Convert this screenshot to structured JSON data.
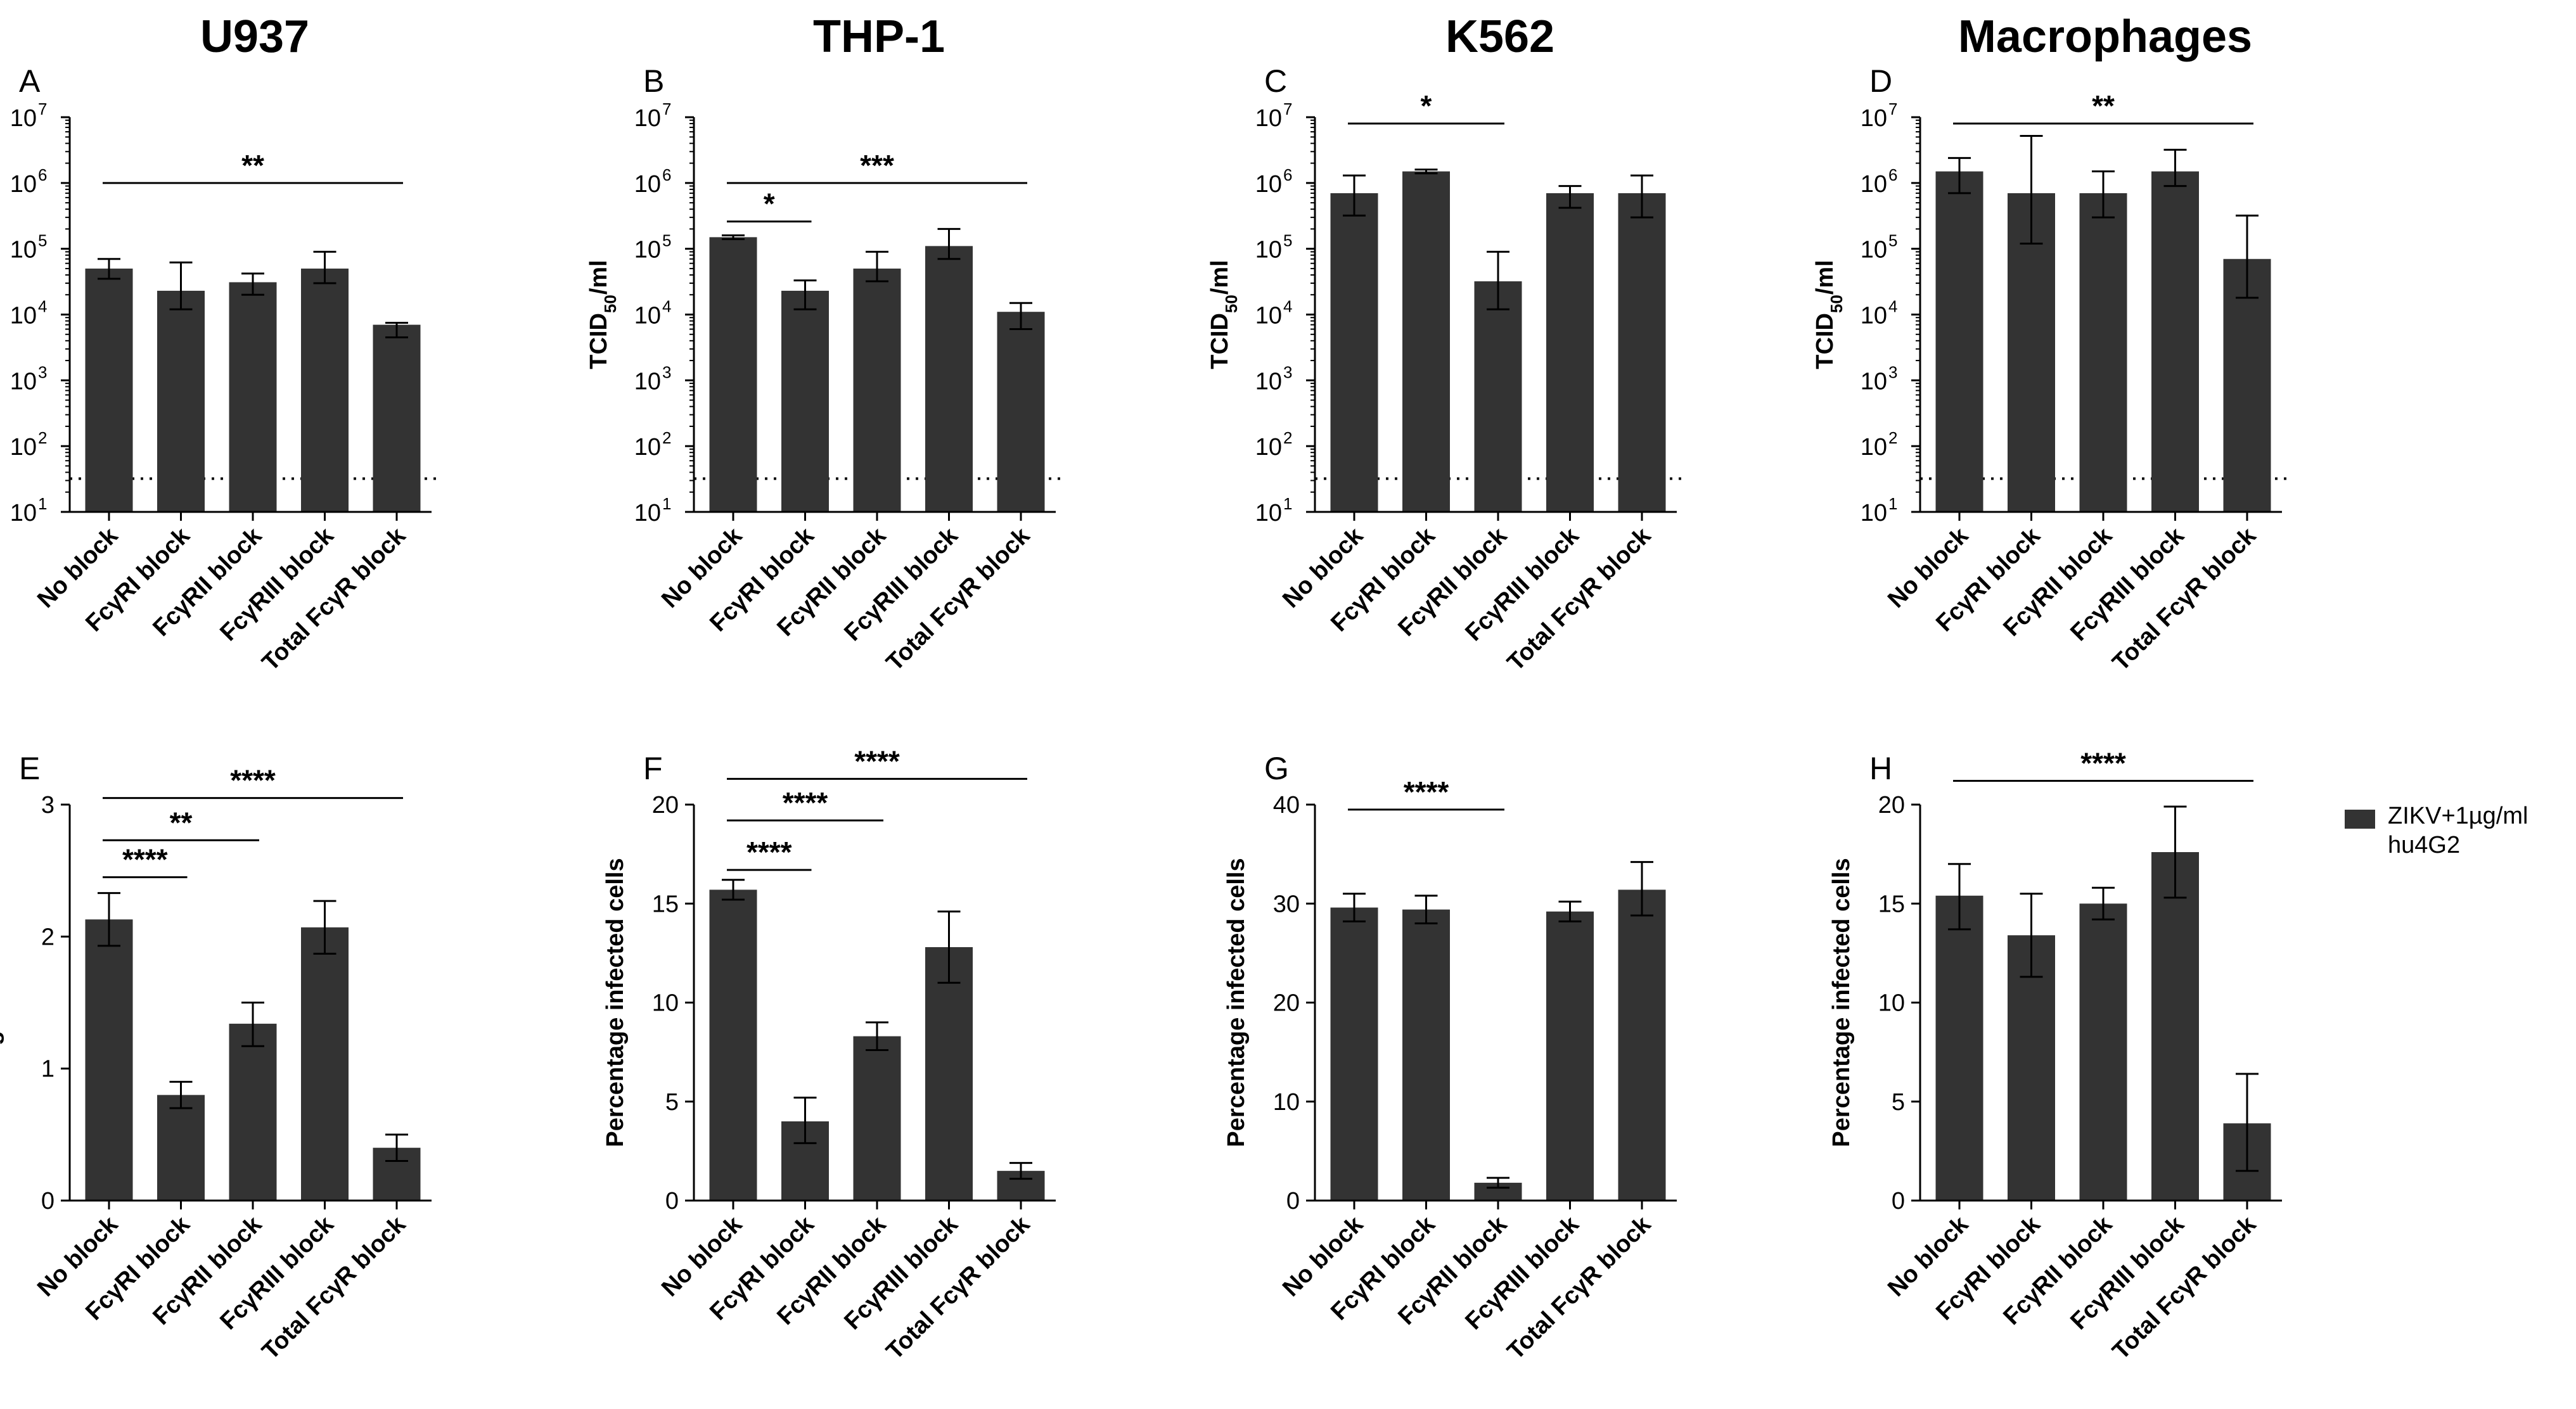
{
  "colors": {
    "bar": "#333333",
    "axis": "#000000",
    "line": "#000000"
  },
  "chart_data": [
    {
      "panel": "A",
      "title": "U937",
      "type": "bar",
      "scale": "log",
      "categories": [
        "No block",
        "FcγRI block",
        "FcγRII block",
        "FcγRIII block",
        "Total FcγR block"
      ],
      "values": [
        50000,
        23000,
        31000,
        50000,
        7000
      ],
      "error_low": [
        35000,
        12000,
        20000,
        30000,
        4500
      ],
      "error_high": [
        70000,
        62000,
        42000,
        90000,
        7500
      ],
      "ylabel": "TCID50/ml",
      "ylim": [
        10,
        10000000
      ],
      "detection_limit": 32,
      "significance": [
        {
          "from": 0,
          "to": 4,
          "label": "**",
          "level": 1000000
        }
      ]
    },
    {
      "panel": "B",
      "title": "THP-1",
      "type": "bar",
      "scale": "log",
      "categories": [
        "No block",
        "FcγRI block",
        "FcγRII block",
        "FcγRIII block",
        "Total FcγR block"
      ],
      "values": [
        150000,
        23000,
        50000,
        110000,
        11000
      ],
      "error_low": [
        140000,
        12000,
        32000,
        70000,
        6000
      ],
      "error_high": [
        160000,
        33000,
        90000,
        200000,
        15000
      ],
      "ylabel": "TCID50/ml",
      "ylim": [
        10,
        10000000
      ],
      "detection_limit": 32,
      "significance": [
        {
          "from": 0,
          "to": 1,
          "label": "*",
          "level": 260000
        },
        {
          "from": 0,
          "to": 4,
          "label": "***",
          "level": 1000000
        }
      ]
    },
    {
      "panel": "C",
      "title": "K562",
      "type": "bar",
      "scale": "log",
      "categories": [
        "No block",
        "FcγRI block",
        "FcγRII block",
        "FcγRIII block",
        "Total FcγR block"
      ],
      "values": [
        700000,
        1500000,
        32000,
        700000,
        700000
      ],
      "error_low": [
        320000,
        1400000,
        12000,
        420000,
        300000
      ],
      "error_high": [
        1300000,
        1600000,
        90000,
        900000,
        1300000
      ],
      "ylabel": "TCID50/ml",
      "ylim": [
        10,
        10000000
      ],
      "detection_limit": 32,
      "significance": [
        {
          "from": 0,
          "to": 2,
          "label": "*",
          "level": 8000000
        }
      ]
    },
    {
      "panel": "D",
      "title": "Macrophages",
      "type": "bar",
      "scale": "log",
      "categories": [
        "No block",
        "FcγRI block",
        "FcγRII block",
        "FcγRIII block",
        "Total FcγR block"
      ],
      "values": [
        1500000,
        700000,
        700000,
        1500000,
        70000
      ],
      "error_low": [
        700000,
        120000,
        300000,
        900000,
        18000
      ],
      "error_high": [
        2400000,
        5200000,
        1500000,
        3200000,
        320000
      ],
      "ylabel": "TCID50/ml",
      "ylim": [
        10,
        10000000
      ],
      "detection_limit": 32,
      "significance": [
        {
          "from": 0,
          "to": 4,
          "label": "**",
          "level": 8000000
        }
      ]
    },
    {
      "panel": "E",
      "title": "",
      "type": "bar",
      "scale": "linear",
      "categories": [
        "No block",
        "FcγRI block",
        "FcγRII block",
        "FcγRIII block",
        "Total FcγR block"
      ],
      "values": [
        2.13,
        0.8,
        1.34,
        2.07,
        0.4
      ],
      "error_low": [
        1.93,
        0.7,
        1.17,
        1.87,
        0.3
      ],
      "error_high": [
        2.33,
        0.9,
        1.5,
        2.27,
        0.5
      ],
      "ylabel": "Percentage infected cells",
      "ylim": [
        0,
        3
      ],
      "yticks": [
        0,
        1,
        2,
        3
      ],
      "significance": [
        {
          "from": 0,
          "to": 1,
          "label": "****",
          "level": 2.45
        },
        {
          "from": 0,
          "to": 2,
          "label": "**",
          "level": 2.73
        },
        {
          "from": 0,
          "to": 4,
          "label": "****",
          "level": 3.05
        }
      ]
    },
    {
      "panel": "F",
      "title": "",
      "type": "bar",
      "scale": "linear",
      "categories": [
        "No block",
        "FcγRI block",
        "FcγRII block",
        "FcγRIII block",
        "Total FcγR block"
      ],
      "values": [
        15.7,
        4.0,
        8.3,
        12.8,
        1.5
      ],
      "error_low": [
        15.2,
        2.9,
        7.6,
        11.0,
        1.1
      ],
      "error_high": [
        16.2,
        5.2,
        9.0,
        14.6,
        1.9
      ],
      "ylabel": "Percentage infected cells",
      "ylim": [
        0,
        20
      ],
      "yticks": [
        0,
        5,
        10,
        15,
        20
      ],
      "significance": [
        {
          "from": 0,
          "to": 1,
          "label": "****",
          "level": 16.7
        },
        {
          "from": 0,
          "to": 2,
          "label": "****",
          "level": 19.2
        },
        {
          "from": 0,
          "to": 4,
          "label": "****",
          "level": 21.3
        }
      ]
    },
    {
      "panel": "G",
      "title": "",
      "type": "bar",
      "scale": "linear",
      "categories": [
        "No block",
        "FcγRI block",
        "FcγRII block",
        "FcγRIII block",
        "Total FcγR block"
      ],
      "values": [
        29.6,
        29.4,
        1.8,
        29.2,
        31.4
      ],
      "error_low": [
        28.2,
        28.0,
        1.3,
        28.2,
        28.8
      ],
      "error_high": [
        31.0,
        30.8,
        2.3,
        30.2,
        34.2
      ],
      "ylabel": "Percentage infected cells",
      "ylim": [
        0,
        40
      ],
      "yticks": [
        0,
        10,
        20,
        30,
        40
      ],
      "significance": [
        {
          "from": 0,
          "to": 2,
          "label": "****",
          "level": 39.5
        }
      ]
    },
    {
      "panel": "H",
      "title": "",
      "type": "bar",
      "scale": "linear",
      "categories": [
        "No block",
        "FcγRI block",
        "FcγRII block",
        "FcγRIII block",
        "Total FcγR block"
      ],
      "values": [
        15.4,
        13.4,
        15.0,
        17.6,
        3.9
      ],
      "error_low": [
        13.7,
        11.3,
        14.2,
        15.3,
        1.5
      ],
      "error_high": [
        17.0,
        15.5,
        15.8,
        19.9,
        6.4
      ],
      "ylabel": "Percentage infected cells",
      "ylim": [
        0,
        20
      ],
      "yticks": [
        0,
        5,
        10,
        15,
        20
      ],
      "significance": [
        {
          "from": 0,
          "to": 4,
          "label": "****",
          "level": 21.2
        }
      ],
      "legend": [
        "ZIKV+1µg/ml",
        "hu4G2"
      ]
    }
  ]
}
